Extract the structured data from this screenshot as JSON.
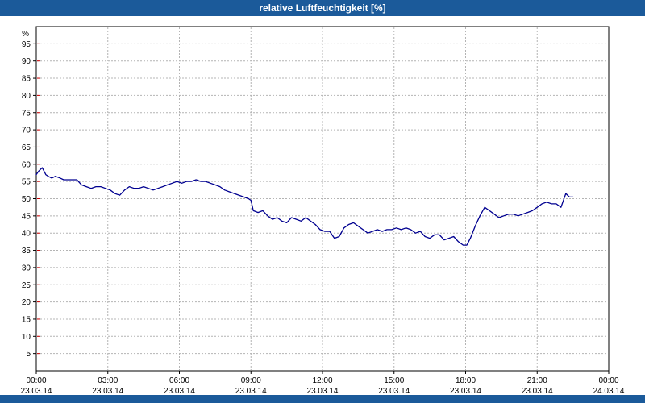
{
  "header": {
    "title": "relative Luftfeuchtigkeit [%]"
  },
  "colors": {
    "title_bar": "#1b5a9a",
    "bottom_bar": "#1b5a9a",
    "line": "#000090",
    "grid": "#b4b4b4",
    "axis": "#000000",
    "minor_tick": "#cc0000",
    "plot_bg": "#ffffff",
    "label": "#000000"
  },
  "chart_data": {
    "type": "line",
    "title": "relative Luftfeuchtigkeit [%]",
    "ylabel": "%",
    "xlabel": "",
    "ylim": [
      0,
      100
    ],
    "y_ticks": [
      5,
      10,
      15,
      20,
      25,
      30,
      35,
      40,
      45,
      50,
      55,
      60,
      65,
      70,
      75,
      80,
      85,
      90,
      95
    ],
    "x_axis_hours": [
      0,
      24
    ],
    "grid": true,
    "legend_position": "none",
    "x_ticks": [
      {
        "hour": 0,
        "time": "00:00",
        "date": "23.03.14"
      },
      {
        "hour": 3,
        "time": "03:00",
        "date": "23.03.14"
      },
      {
        "hour": 6,
        "time": "06:00",
        "date": "23.03.14"
      },
      {
        "hour": 9,
        "time": "09:00",
        "date": "23.03.14"
      },
      {
        "hour": 12,
        "time": "12:00",
        "date": "23.03.14"
      },
      {
        "hour": 15,
        "time": "15:00",
        "date": "23.03.14"
      },
      {
        "hour": 18,
        "time": "18:00",
        "date": "23.03.14"
      },
      {
        "hour": 21,
        "time": "21:00",
        "date": "23.03.14"
      },
      {
        "hour": 24,
        "time": "00:00",
        "date": "24.03.14"
      }
    ],
    "series": [
      {
        "name": "relative Luftfeuchtigkeit [%]",
        "points": [
          [
            0.0,
            57.0
          ],
          [
            0.1,
            58.0
          ],
          [
            0.25,
            59.0
          ],
          [
            0.4,
            57.0
          ],
          [
            0.5,
            56.5
          ],
          [
            0.65,
            56.0
          ],
          [
            0.8,
            56.5
          ],
          [
            1.0,
            56.0
          ],
          [
            1.15,
            55.5
          ],
          [
            1.3,
            55.5
          ],
          [
            1.5,
            55.5
          ],
          [
            1.7,
            55.5
          ],
          [
            1.9,
            54.0
          ],
          [
            2.1,
            53.5
          ],
          [
            2.3,
            53.0
          ],
          [
            2.5,
            53.5
          ],
          [
            2.7,
            53.5
          ],
          [
            2.9,
            53.0
          ],
          [
            3.1,
            52.5
          ],
          [
            3.3,
            51.5
          ],
          [
            3.5,
            51.0
          ],
          [
            3.7,
            52.5
          ],
          [
            3.9,
            53.5
          ],
          [
            4.1,
            53.0
          ],
          [
            4.3,
            53.0
          ],
          [
            4.5,
            53.5
          ],
          [
            4.7,
            53.0
          ],
          [
            4.9,
            52.5
          ],
          [
            5.1,
            53.0
          ],
          [
            5.3,
            53.5
          ],
          [
            5.5,
            54.0
          ],
          [
            5.7,
            54.5
          ],
          [
            5.9,
            55.0
          ],
          [
            6.1,
            54.5
          ],
          [
            6.3,
            55.0
          ],
          [
            6.5,
            55.0
          ],
          [
            6.7,
            55.5
          ],
          [
            6.9,
            55.0
          ],
          [
            7.1,
            55.0
          ],
          [
            7.3,
            54.5
          ],
          [
            7.5,
            54.0
          ],
          [
            7.7,
            53.5
          ],
          [
            7.9,
            52.5
          ],
          [
            8.1,
            52.0
          ],
          [
            8.3,
            51.5
          ],
          [
            8.5,
            51.0
          ],
          [
            8.7,
            50.5
          ],
          [
            8.9,
            50.0
          ],
          [
            9.0,
            49.5
          ],
          [
            9.1,
            46.5
          ],
          [
            9.3,
            46.0
          ],
          [
            9.5,
            46.5
          ],
          [
            9.7,
            45.0
          ],
          [
            9.9,
            44.0
          ],
          [
            10.1,
            44.5
          ],
          [
            10.3,
            43.5
          ],
          [
            10.5,
            43.0
          ],
          [
            10.7,
            44.5
          ],
          [
            10.9,
            44.0
          ],
          [
            11.1,
            43.5
          ],
          [
            11.3,
            44.5
          ],
          [
            11.5,
            43.5
          ],
          [
            11.7,
            42.5
          ],
          [
            11.9,
            41.0
          ],
          [
            12.1,
            40.5
          ],
          [
            12.3,
            40.5
          ],
          [
            12.5,
            38.5
          ],
          [
            12.7,
            39.0
          ],
          [
            12.9,
            41.5
          ],
          [
            13.1,
            42.5
          ],
          [
            13.3,
            43.0
          ],
          [
            13.5,
            42.0
          ],
          [
            13.7,
            41.0
          ],
          [
            13.9,
            40.0
          ],
          [
            14.1,
            40.5
          ],
          [
            14.3,
            41.0
          ],
          [
            14.5,
            40.5
          ],
          [
            14.7,
            41.0
          ],
          [
            14.9,
            41.0
          ],
          [
            15.1,
            41.5
          ],
          [
            15.3,
            41.0
          ],
          [
            15.5,
            41.5
          ],
          [
            15.7,
            41.0
          ],
          [
            15.9,
            40.0
          ],
          [
            16.1,
            40.5
          ],
          [
            16.3,
            39.0
          ],
          [
            16.5,
            38.5
          ],
          [
            16.7,
            39.5
          ],
          [
            16.9,
            39.5
          ],
          [
            17.1,
            38.0
          ],
          [
            17.3,
            38.5
          ],
          [
            17.5,
            39.0
          ],
          [
            17.7,
            37.5
          ],
          [
            17.9,
            36.5
          ],
          [
            18.05,
            36.5
          ],
          [
            18.2,
            38.5
          ],
          [
            18.4,
            42.0
          ],
          [
            18.6,
            45.0
          ],
          [
            18.8,
            47.5
          ],
          [
            19.0,
            46.5
          ],
          [
            19.2,
            45.5
          ],
          [
            19.4,
            44.5
          ],
          [
            19.6,
            45.0
          ],
          [
            19.8,
            45.5
          ],
          [
            20.0,
            45.5
          ],
          [
            20.2,
            45.0
          ],
          [
            20.4,
            45.5
          ],
          [
            20.6,
            46.0
          ],
          [
            20.8,
            46.5
          ],
          [
            21.0,
            47.5
          ],
          [
            21.2,
            48.5
          ],
          [
            21.4,
            49.0
          ],
          [
            21.6,
            48.5
          ],
          [
            21.8,
            48.5
          ],
          [
            22.0,
            47.5
          ],
          [
            22.2,
            51.5
          ],
          [
            22.35,
            50.5
          ],
          [
            22.5,
            50.5
          ]
        ]
      }
    ]
  }
}
